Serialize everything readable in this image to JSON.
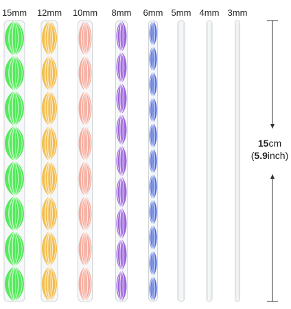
{
  "rods": [
    {
      "label": "15mm",
      "color": "#33e63a",
      "style": "twist"
    },
    {
      "label": "12mm",
      "color": "#f2b12a",
      "style": "twist"
    },
    {
      "label": "10mm",
      "color": "#f49b8a",
      "style": "twist"
    },
    {
      "label": "8mm",
      "color": "#8a46d6",
      "style": "twist"
    },
    {
      "label": "6mm",
      "color": "#2c4fd8",
      "style": "twist"
    },
    {
      "label": "5mm",
      "color": "#d9dde0",
      "style": "clear"
    },
    {
      "label": "4mm",
      "color": "#d9dde0",
      "style": "clear"
    },
    {
      "label": "3mm",
      "color": "#d9dde0",
      "style": "clear"
    }
  ],
  "measurement": {
    "cm_value": "15",
    "cm_unit": "cm",
    "open": "(",
    "inch_value": "5.9",
    "inch_unit": "inch",
    "close": ")"
  },
  "colors": {
    "text": "#222222",
    "arrow": "#333333"
  }
}
